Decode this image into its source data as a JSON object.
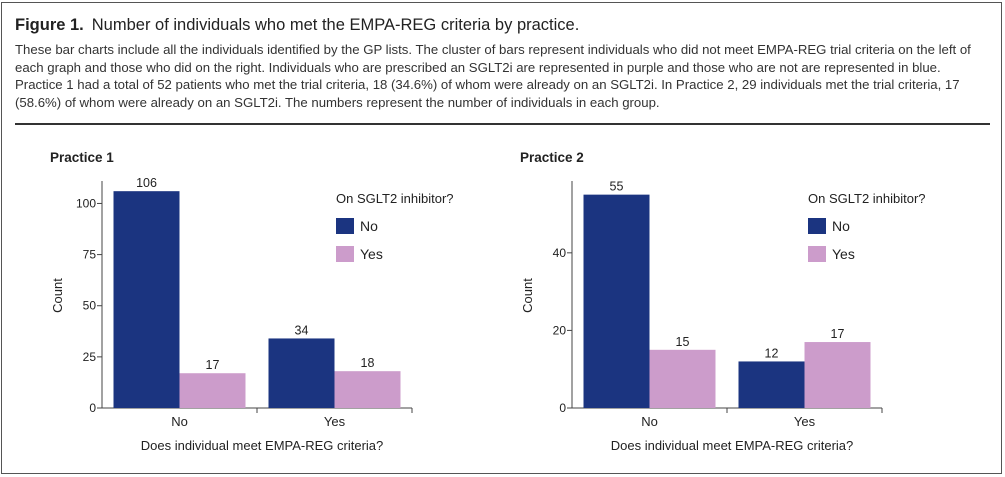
{
  "figure": {
    "label": "Figure 1.",
    "title": "Number of individuals who met the EMPA-REG criteria by practice.",
    "description": "These bar charts include all the individuals identified by the GP lists. The cluster of bars represent individuals who did not meet EMPA-REG trial criteria on the left of each graph and those who did on the right. Individuals who are prescribed an SGLT2i are represented in purple and those who are not are represented in blue. Practice 1 had a total of 52 patients who met the trial criteria, 18 (34.6%) of whom were already on an SGLT2i. In Practice 2, 29 individuals met the trial criteria, 17 (58.6%) of whom were already on an SGLT2i. The numbers represent the number of individuals in each group."
  },
  "colors": {
    "no": "#1b3480",
    "yes": "#cc9ccb",
    "axis": "#444444"
  },
  "chart_data": [
    {
      "type": "bar",
      "title": "Practice 1",
      "xlabel": "Does individual meet EMPA-REG criteria?",
      "ylabel": "Count",
      "categories": [
        "No",
        "Yes"
      ],
      "series": [
        {
          "name": "No",
          "values": [
            106,
            34
          ]
        },
        {
          "name": "Yes",
          "values": [
            17,
            18
          ]
        }
      ],
      "legend_title": "On SGLT2 inhibitor?",
      "legend_position": "top-right",
      "ylim": [
        0,
        110
      ],
      "yticks": [
        0,
        25,
        50,
        75,
        100
      ]
    },
    {
      "type": "bar",
      "title": "Practice 2",
      "xlabel": "Does individual meet EMPA-REG criteria?",
      "ylabel": "Count",
      "categories": [
        "No",
        "Yes"
      ],
      "series": [
        {
          "name": "No",
          "values": [
            55,
            12
          ]
        },
        {
          "name": "Yes",
          "values": [
            15,
            17
          ]
        }
      ],
      "legend_title": "On SGLT2 inhibitor?",
      "legend_position": "top-right",
      "ylim": [
        0,
        58
      ],
      "yticks": [
        0,
        20,
        40
      ]
    }
  ]
}
